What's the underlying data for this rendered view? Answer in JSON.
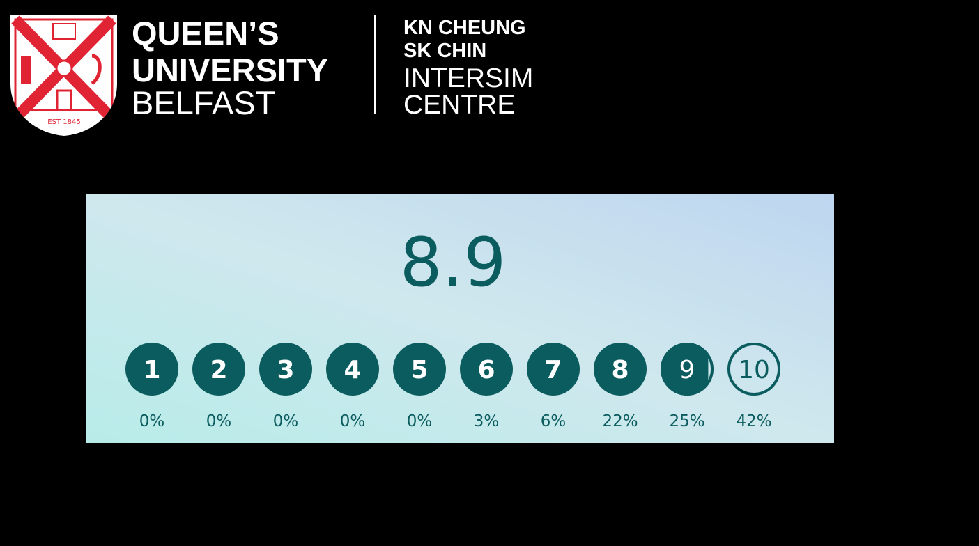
{
  "logo": {
    "name_lines": [
      "QUEEN’S",
      "UNIVERSITY",
      "BELFAST"
    ],
    "established": "EST 1845",
    "centre_lines": [
      "KN CHEUNG",
      "SK CHIN",
      "INTERSIM",
      "CENTRE"
    ]
  },
  "rating": {
    "score": "8.9",
    "options": [
      {
        "label": "1",
        "percent": "0%"
      },
      {
        "label": "2",
        "percent": "0%"
      },
      {
        "label": "3",
        "percent": "0%"
      },
      {
        "label": "4",
        "percent": "0%"
      },
      {
        "label": "5",
        "percent": "0%"
      },
      {
        "label": "6",
        "percent": "3%"
      },
      {
        "label": "7",
        "percent": "6%"
      },
      {
        "label": "8",
        "percent": "22%"
      },
      {
        "label": "9",
        "percent": "25%"
      },
      {
        "label": "10",
        "percent": "42%"
      }
    ]
  }
}
